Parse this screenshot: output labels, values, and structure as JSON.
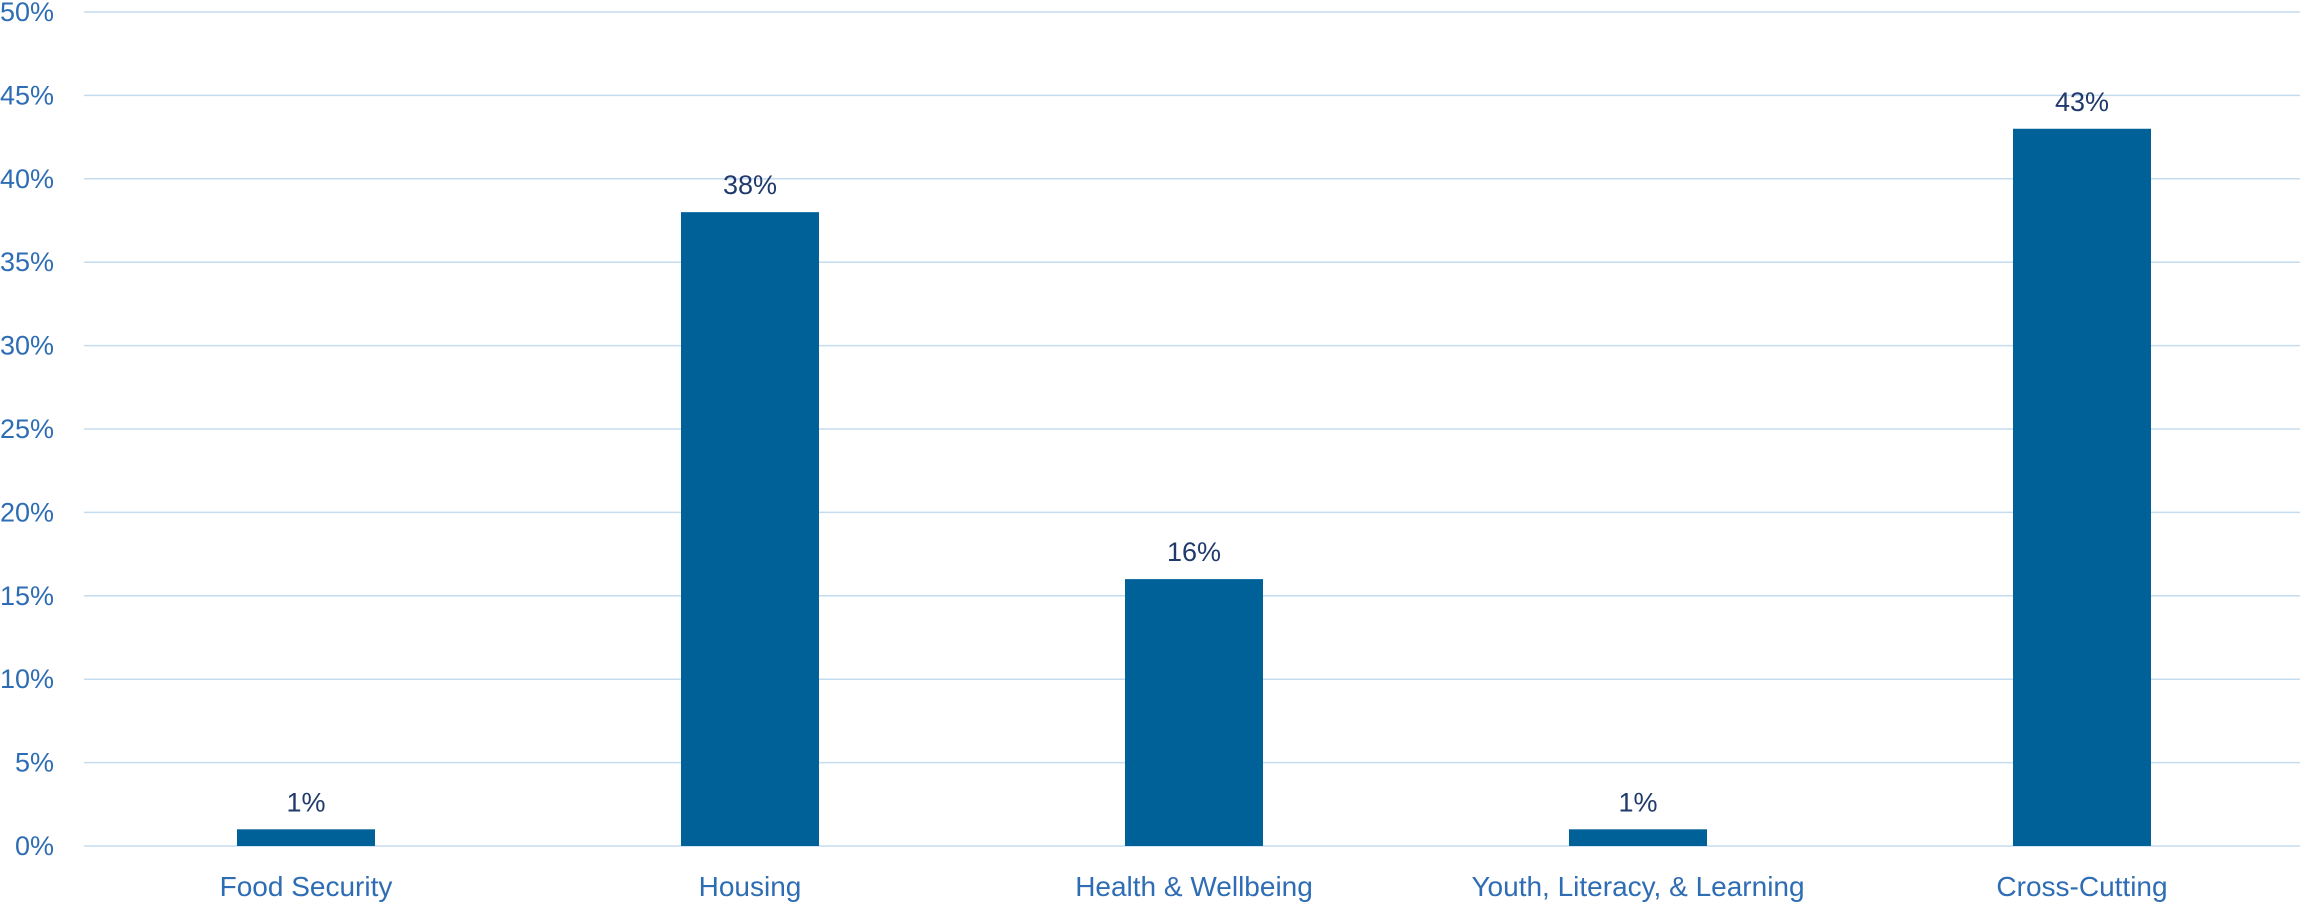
{
  "colors": {
    "bar": "#006098",
    "axis_text": "#2E6DB4",
    "data_label": "#1F3A6B",
    "grid": "#C5DCEF"
  },
  "chart_data": {
    "type": "bar",
    "categories": [
      "Food Security",
      "Housing",
      "Health & Wellbeing",
      "Youth, Literacy, & Learning",
      "Cross-Cutting"
    ],
    "values": [
      1,
      38,
      16,
      1,
      43
    ],
    "data_labels": [
      "1%",
      "38%",
      "16%",
      "1%",
      "43%"
    ],
    "yticks": [
      0,
      5,
      10,
      15,
      20,
      25,
      30,
      35,
      40,
      45,
      50
    ],
    "ytick_labels": [
      "0%",
      "5%",
      "10%",
      "15%",
      "20%",
      "25%",
      "30%",
      "35%",
      "40%",
      "45%",
      "50%"
    ],
    "ylim": [
      0,
      50
    ],
    "grid": true,
    "title": "",
    "xlabel": "",
    "ylabel": ""
  }
}
